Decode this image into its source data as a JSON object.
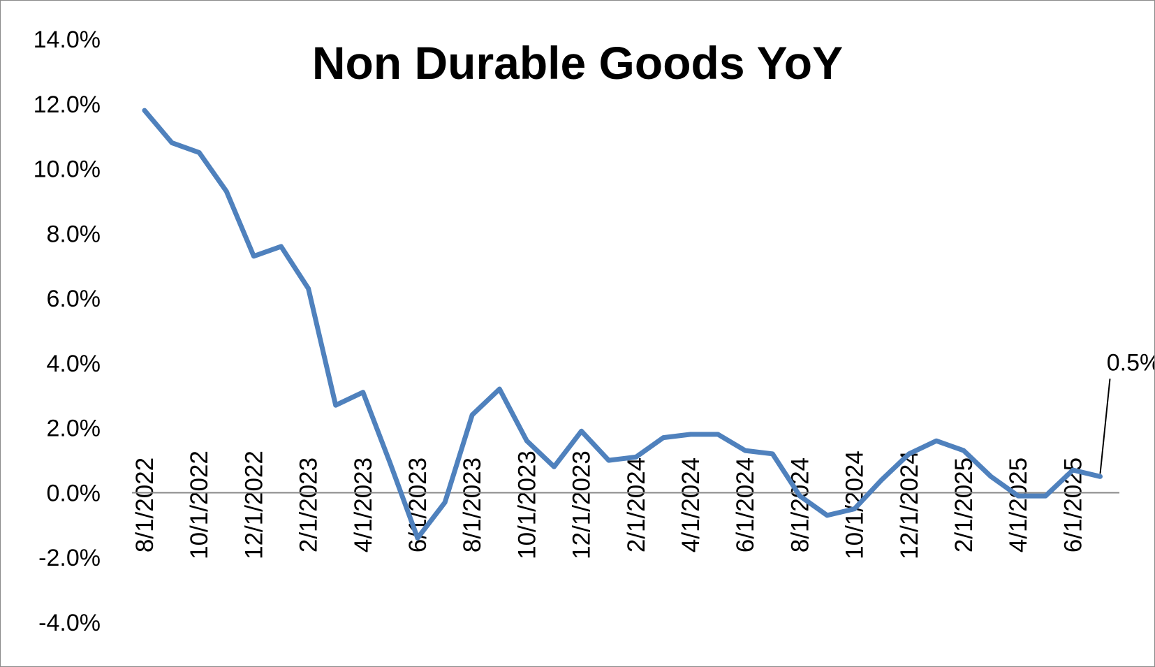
{
  "chart_data": {
    "type": "line",
    "title": "Non Durable Goods YoY",
    "xlabel": "",
    "ylabel": "",
    "ylim": [
      -4.0,
      14.0
    ],
    "y_ticks": [
      "14.0%",
      "12.0%",
      "10.0%",
      "8.0%",
      "6.0%",
      "4.0%",
      "2.0%",
      "0.0%",
      "-2.0%",
      "-4.0%"
    ],
    "y_tick_values": [
      14,
      12,
      10,
      8,
      6,
      4,
      2,
      0,
      -2,
      -4
    ],
    "x_tick_labels": [
      "8/1/2022",
      "10/1/2022",
      "12/1/2022",
      "2/1/2023",
      "4/1/2023",
      "6/1/2023",
      "8/1/2023",
      "10/1/2023",
      "12/1/2023",
      "2/1/2024",
      "4/1/2024",
      "6/1/2024",
      "8/1/2024",
      "10/1/2024",
      "12/1/2024",
      "2/1/2025",
      "4/1/2025",
      "6/1/2025"
    ],
    "grid": false,
    "legend": "none",
    "series": [
      {
        "color": "#4f81bd",
        "x": [
          "8/1/2022",
          "9/1/2022",
          "10/1/2022",
          "11/1/2022",
          "12/1/2022",
          "1/1/2023",
          "2/1/2023",
          "3/1/2023",
          "4/1/2023",
          "5/1/2023",
          "6/1/2023",
          "7/1/2023",
          "8/1/2023",
          "9/1/2023",
          "10/1/2023",
          "11/1/2023",
          "12/1/2023",
          "1/1/2024",
          "2/1/2024",
          "3/1/2024",
          "4/1/2024",
          "5/1/2024",
          "6/1/2024",
          "7/1/2024",
          "8/1/2024",
          "9/1/2024",
          "10/1/2024",
          "11/1/2024",
          "12/1/2024",
          "1/1/2025",
          "2/1/2025",
          "3/1/2025",
          "4/1/2025",
          "5/1/2025",
          "6/1/2025",
          "7/1/2025"
        ],
        "values": [
          11.8,
          10.8,
          10.5,
          9.3,
          7.3,
          7.6,
          6.3,
          2.7,
          3.1,
          0.9,
          -1.4,
          -0.3,
          2.4,
          3.2,
          1.6,
          0.8,
          1.9,
          1.0,
          1.1,
          1.7,
          1.8,
          1.8,
          1.3,
          1.2,
          -0.1,
          -0.7,
          -0.5,
          0.4,
          1.2,
          1.6,
          1.3,
          0.5,
          -0.1,
          -0.1,
          0.7,
          0.5
        ]
      }
    ],
    "annotations": [
      {
        "text": "0.5%",
        "x": "7/1/2025",
        "y": 0.5
      }
    ]
  }
}
